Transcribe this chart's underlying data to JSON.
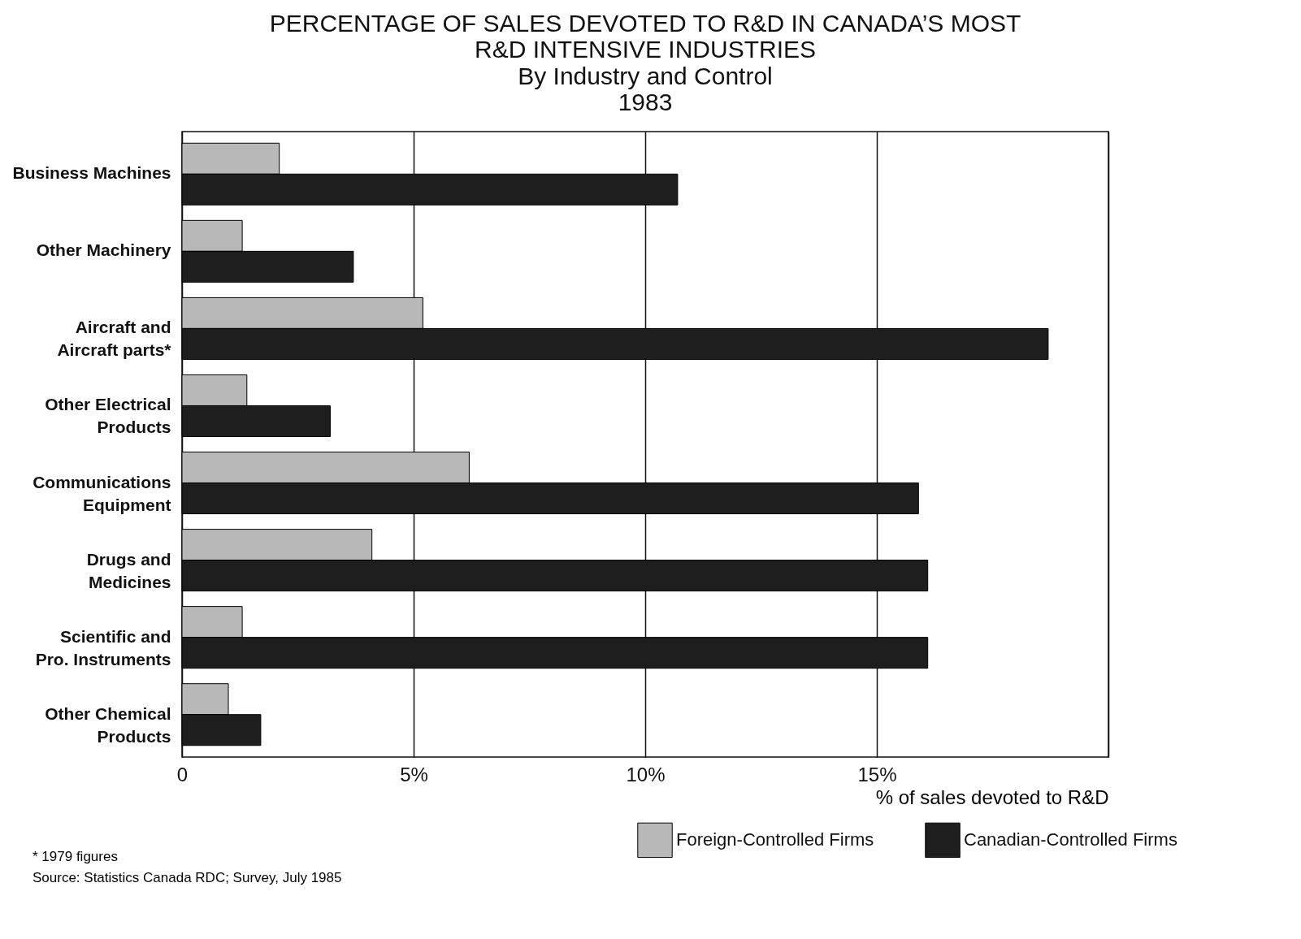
{
  "chart_data": {
    "type": "bar",
    "orientation": "horizontal",
    "title": "PERCENTAGE OF SALES DEVOTED TO R&D IN CANADA’S MOST\nR&D INTENSIVE INDUSTRIES",
    "subtitle": "By Industry and Control\n1983",
    "xlabel": "% of sales devoted to R&D",
    "categories": [
      "Business Machines",
      "Other Machinery",
      "Aircraft and Aircraft parts*",
      "Other Electrical Products",
      "Communications Equipment",
      "Drugs and Medicines",
      "Scientific and Pro. Instruments",
      "Other Chemical Products"
    ],
    "series": [
      {
        "name": "Foreign-Controlled Firms",
        "color": "#b8b8b8",
        "values": [
          2.1,
          1.3,
          5.2,
          1.4,
          6.2,
          4.1,
          1.3,
          1.0
        ]
      },
      {
        "name": "Canadian-Controlled Firms",
        "color": "#1e1e1e",
        "values": [
          10.7,
          3.7,
          18.7,
          3.2,
          15.9,
          16.1,
          16.1,
          1.7
        ]
      }
    ],
    "xlim": [
      0,
      20
    ],
    "xticks": [
      0,
      {
        "value": 5,
        "label": "5%"
      },
      {
        "value": 10,
        "label": "10%"
      },
      {
        "value": 15,
        "label": "15%"
      },
      {
        "value": 20,
        "label": null
      }
    ],
    "grid": "x",
    "legend": "bottom right",
    "annotations": [
      "* 1979 figures",
      "Source: Statistics Canada RDC; Survey, July 1985"
    ]
  }
}
